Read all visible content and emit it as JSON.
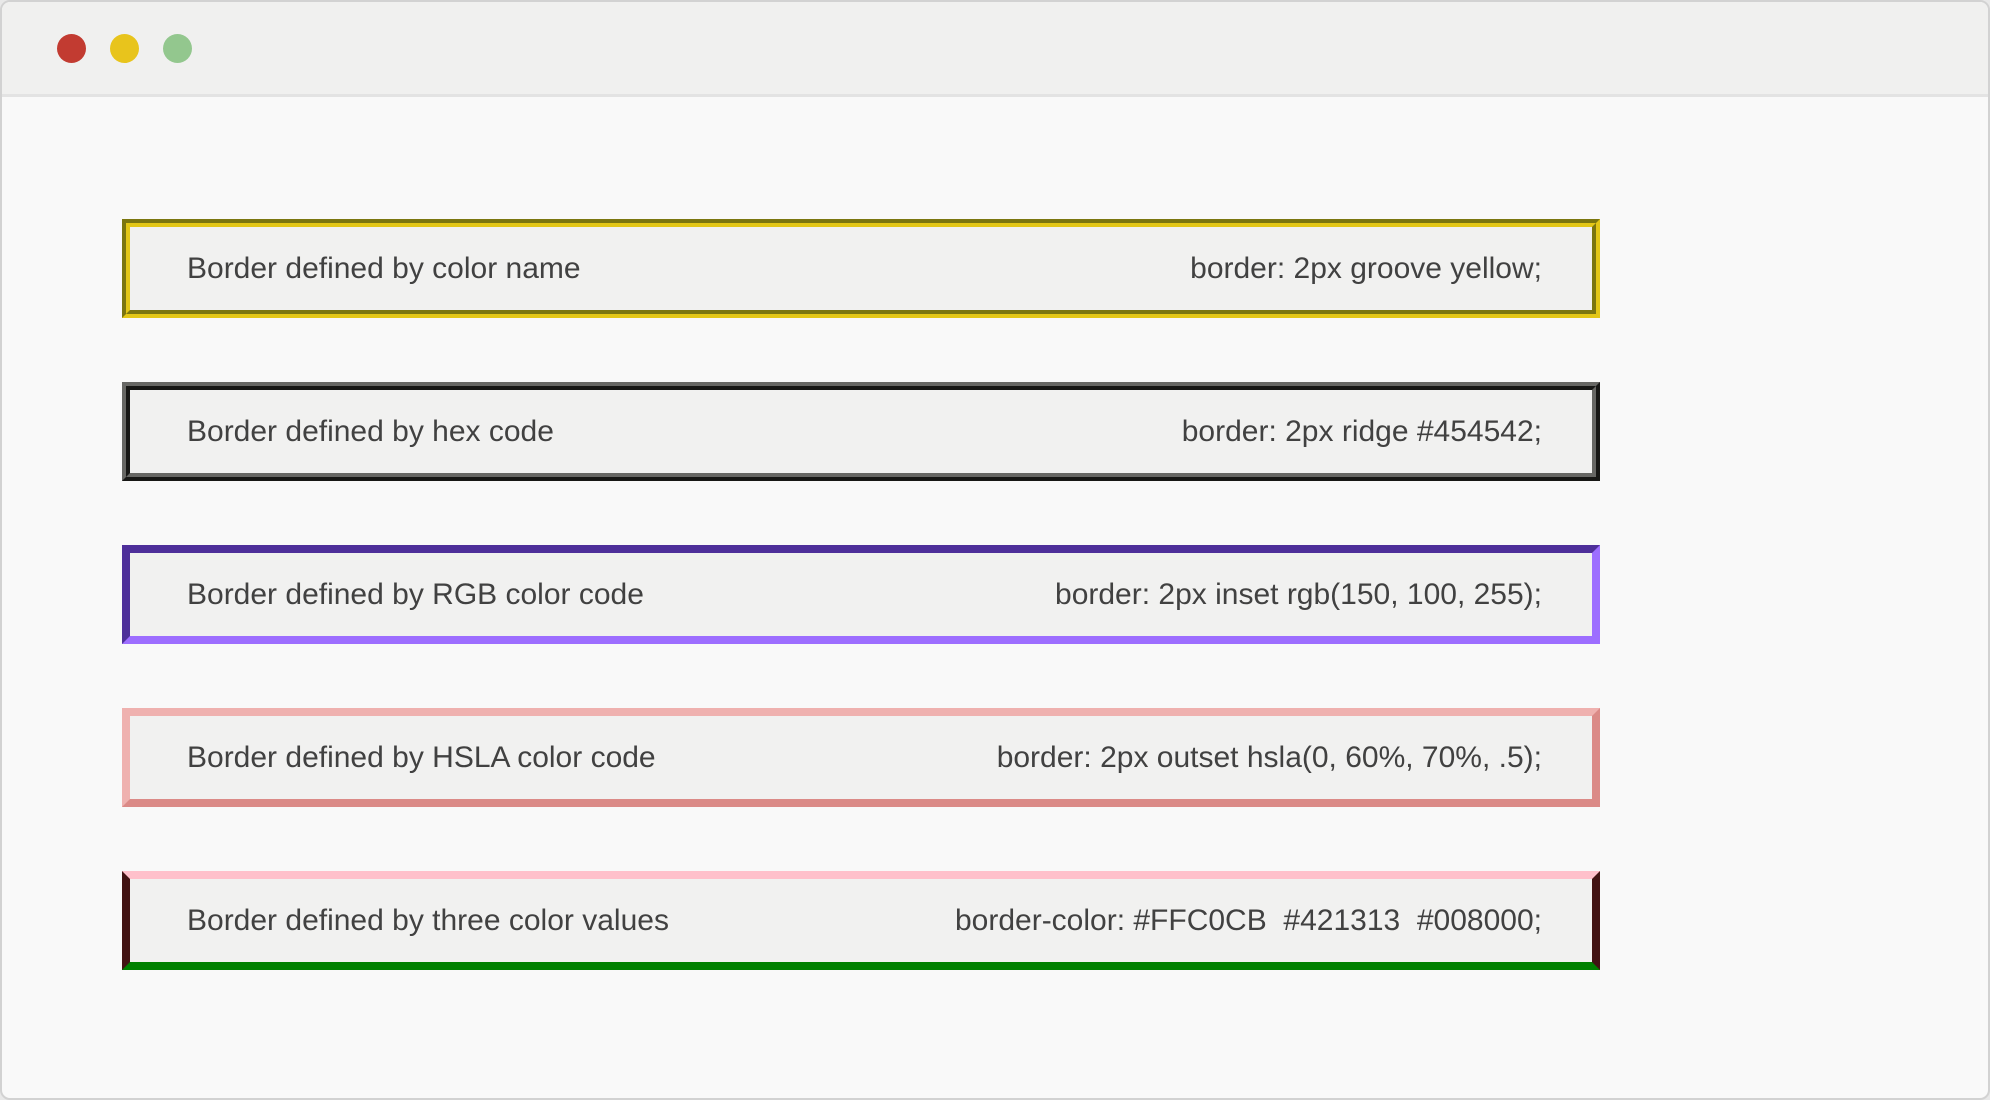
{
  "window": {
    "traffic_lights": [
      {
        "name": "close",
        "color": "#c23b31"
      },
      {
        "name": "minimize",
        "color": "#e8c41c"
      },
      {
        "name": "zoom",
        "color": "#93c78e"
      }
    ],
    "titlebar_background": "#f0f0ef",
    "page_background": "#f9f9f9"
  },
  "boxes": [
    {
      "label": "Border defined by color name",
      "css": "border: 2px groove yellow;",
      "border_style": "groove",
      "border_colors": [
        "#7b760f",
        "#e3c716"
      ]
    },
    {
      "label": "Border defined by hex code",
      "css": "border: 2px ridge #454542;",
      "border_style": "ridge",
      "border_colors": [
        "#676764",
        "#171715"
      ]
    },
    {
      "label": "Border defined by RGB color code",
      "css": "border: 2px inset rgb(150, 100, 255);",
      "border_style": "inset",
      "border_colors": [
        "#4e2f9a",
        "#9d6eff"
      ]
    },
    {
      "label": "Border defined by HSLA color code",
      "css": "border: 2px outset hsla(0, 60%, 70%, .5);",
      "border_style": "outset",
      "border_colors": [
        "#efb1af",
        "#db8a87"
      ]
    },
    {
      "label": "Border defined by three color values",
      "css": "border-color: #FFC0CB  #421313  #008000;",
      "border_style": "solid",
      "border_colors": [
        "#FFC0CB",
        "#421313",
        "#008000"
      ]
    }
  ]
}
